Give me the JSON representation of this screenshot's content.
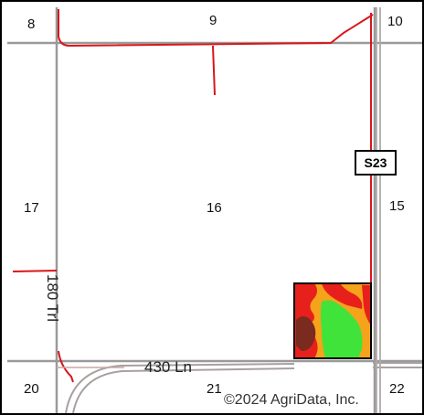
{
  "map": {
    "section_labels": [
      "8",
      "9",
      "10",
      "17",
      "16",
      "15",
      "20",
      "21",
      "22"
    ],
    "roads": {
      "north_south": "180 Trl",
      "east_west": "430 Ln",
      "highway_shield": "S23"
    },
    "copyright": "©2024 AgriData, Inc.",
    "colors": {
      "road_line": "#9a9a9a",
      "road_edge": "#d8161b",
      "zone_red": "#e8201c",
      "zone_orange": "#f5a31b",
      "zone_brown": "#7a2a1e",
      "zone_green": "#3fe33a",
      "field_outline": "#000000"
    },
    "field": {
      "zone_legend": [
        "red",
        "orange",
        "brown",
        "green"
      ]
    }
  }
}
